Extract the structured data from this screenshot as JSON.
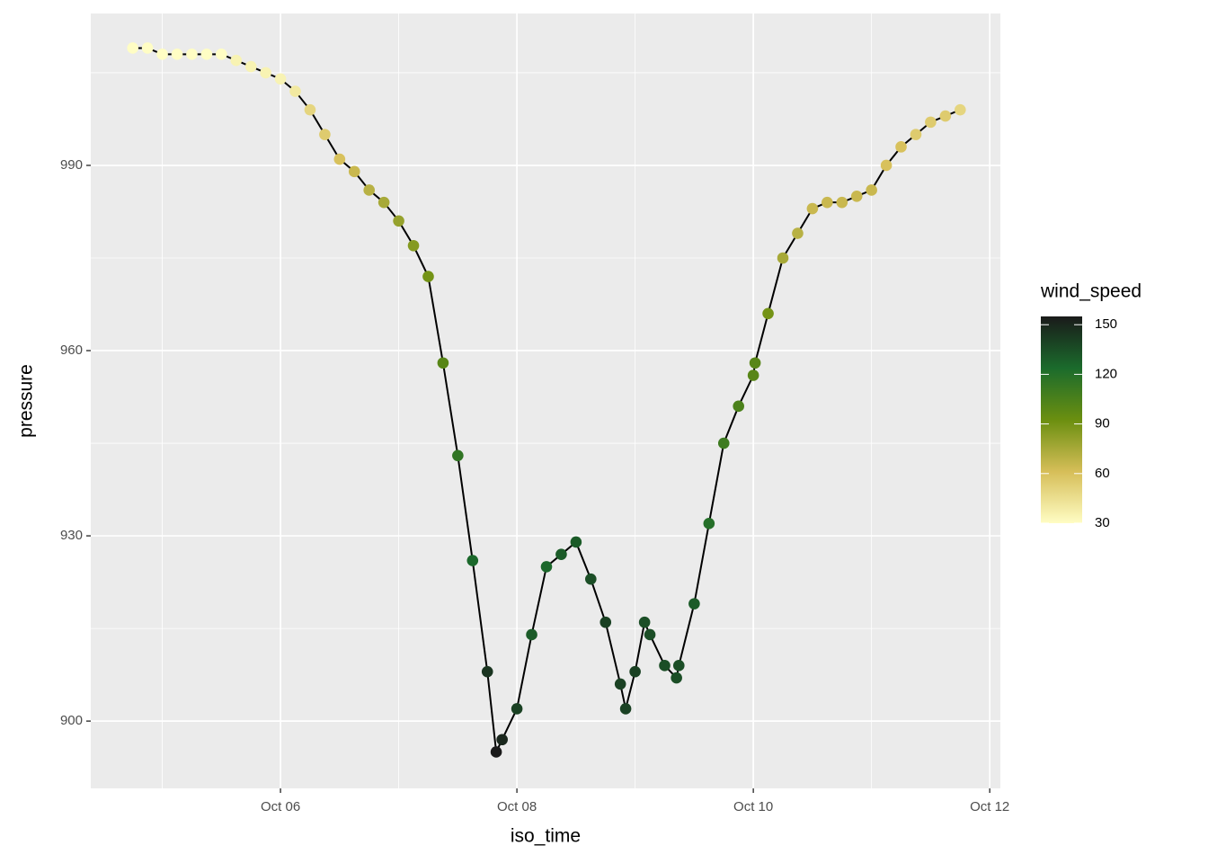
{
  "chart_data": {
    "type": "line",
    "x_label": "iso_time",
    "y_label": "pressure",
    "x": [
      4.75,
      4.875,
      5.0,
      5.125,
      5.25,
      5.375,
      5.5,
      5.625,
      5.75,
      5.875,
      6.0,
      6.125,
      6.25,
      6.375,
      6.5,
      6.625,
      6.75,
      6.875,
      7.0,
      7.125,
      7.25,
      7.375,
      7.5,
      7.625,
      7.75,
      7.825,
      7.875,
      8.0,
      8.125,
      8.25,
      8.375,
      8.5,
      8.625,
      8.75,
      8.875,
      8.92,
      9.0,
      9.08,
      9.125,
      9.25,
      9.35,
      9.37,
      9.5,
      9.625,
      9.75,
      9.875,
      10.0,
      10.015,
      10.125,
      10.25,
      10.375,
      10.5,
      10.625,
      10.75,
      10.875,
      11.0,
      11.125,
      11.25,
      11.375,
      11.5,
      11.625,
      11.75
    ],
    "values": [
      1009,
      1009,
      1008,
      1008,
      1008,
      1008,
      1008,
      1007,
      1006,
      1005,
      1004,
      1002,
      999,
      995,
      991,
      989,
      986,
      984,
      981,
      977,
      972,
      958,
      943,
      926,
      908,
      895,
      897,
      902,
      914,
      925,
      927,
      929,
      923,
      916,
      906,
      902,
      908,
      916,
      914,
      909,
      907,
      909,
      919,
      932,
      945,
      951,
      956,
      958,
      966,
      975,
      979,
      983,
      984,
      984,
      985,
      986,
      990,
      993,
      995,
      997,
      998,
      999
    ],
    "color_values": [
      30,
      30,
      30,
      30,
      30,
      30,
      30,
      35,
      35,
      35,
      35,
      40,
      50,
      55,
      60,
      65,
      70,
      75,
      80,
      85,
      90,
      100,
      115,
      125,
      145,
      155,
      150,
      140,
      130,
      125,
      130,
      130,
      135,
      140,
      140,
      140,
      140,
      135,
      135,
      135,
      135,
      135,
      130,
      120,
      110,
      105,
      100,
      100,
      90,
      75,
      70,
      65,
      65,
      65,
      65,
      65,
      60,
      60,
      55,
      55,
      55,
      50
    ],
    "line_color": "#000000",
    "xlim": [
      4.395,
      12.09
    ],
    "xticks": [
      {
        "value": 6,
        "label": "Oct 06"
      },
      {
        "value": 8,
        "label": "Oct 08"
      },
      {
        "value": 10,
        "label": "Oct 10"
      },
      {
        "value": 12,
        "label": "Oct 12"
      }
    ],
    "ylim": [
      889.1,
      1014.6
    ],
    "yticks": [
      900,
      930,
      960,
      990
    ],
    "grid": true,
    "colorbar": {
      "title": "wind_speed",
      "lim": [
        30,
        155
      ],
      "ticks": [
        30,
        60,
        90,
        120,
        150
      ],
      "colors": [
        "#FFFDC4",
        "#D6BE58",
        "#6B8F10",
        "#1B6B2C",
        "#1A1A1A"
      ]
    }
  }
}
